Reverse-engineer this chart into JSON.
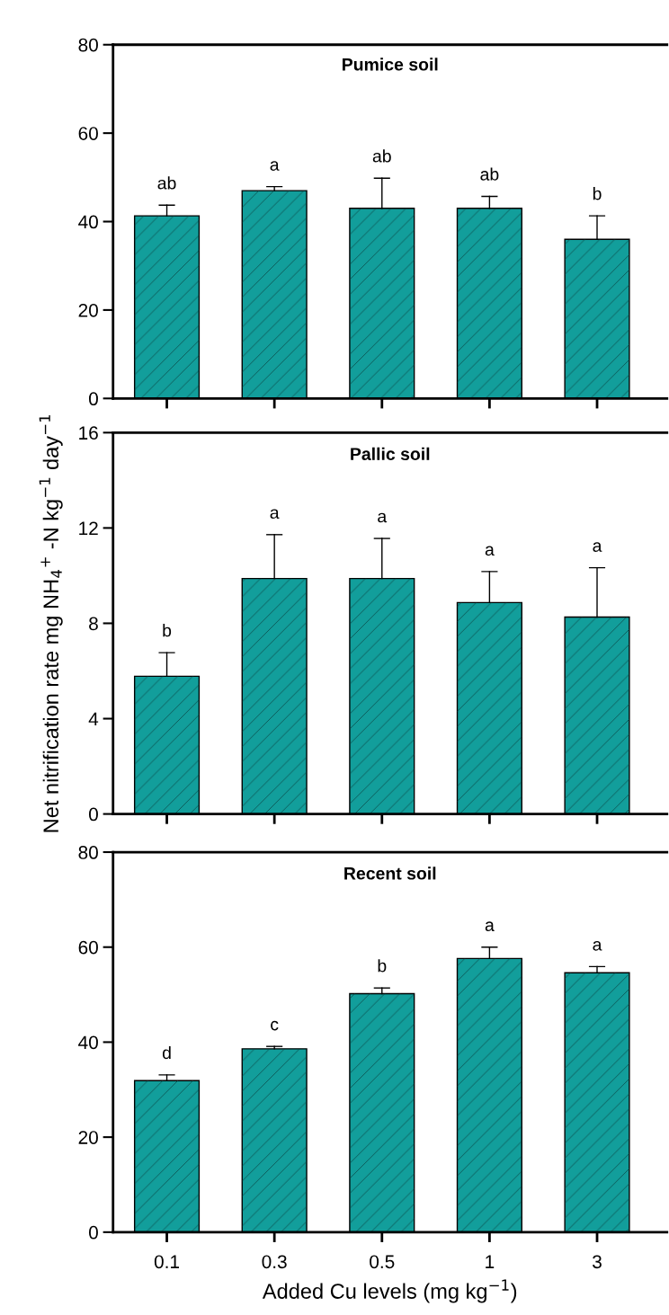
{
  "chart_data": [
    {
      "type": "bar",
      "title": "Pumice soil",
      "categories": [
        "0.1",
        "0.3",
        "0.5",
        "1",
        "3"
      ],
      "values": [
        41.3,
        47.0,
        43.0,
        43.0,
        36.0
      ],
      "errors": [
        [
          41.3,
          43.7
        ],
        [
          47.0,
          47.9
        ],
        [
          43.0,
          49.8
        ],
        [
          43.0,
          45.7
        ],
        [
          36.0,
          41.3
        ]
      ],
      "color": "#129e9b",
      "ylim": [
        0,
        80
      ],
      "yticks": [
        0,
        20,
        40,
        60,
        80
      ],
      "tick_labels": "y",
      "annotations": [
        {
          "text": "ab",
          "x": "0.1",
          "y": 43.7
        },
        {
          "text": "a",
          "x": "0.3",
          "y": 47.9
        },
        {
          "text": "ab",
          "x": "0.5",
          "y": 49.8
        },
        {
          "text": "ab",
          "x": "1",
          "y": 45.7
        },
        {
          "text": "b",
          "x": "3",
          "y": 41.3
        }
      ]
    },
    {
      "type": "bar",
      "title": "Pallic soil",
      "ylabel": "Net nitrification rate mg NH$_{4}$$^{+}$ -N kg$^{−1}$ day$^{−1}$",
      "categories": [
        "0.1",
        "0.3",
        "0.5",
        "1",
        "3"
      ],
      "values": [
        5.78,
        9.88,
        9.88,
        8.87,
        8.26
      ],
      "errors": [
        [
          5.78,
          6.77
        ],
        [
          9.88,
          11.72
        ],
        [
          9.88,
          11.56
        ],
        [
          8.87,
          10.17
        ],
        [
          8.26,
          10.33
        ]
      ],
      "color": "#129e9b",
      "ylim": [
        0,
        16
      ],
      "yticks": [
        0,
        4,
        8,
        12,
        16
      ],
      "tick_labels": "y",
      "annotations": [
        {
          "text": "b",
          "x": "0.1",
          "y": 6.77
        },
        {
          "text": "a",
          "x": "0.3",
          "y": 11.72
        },
        {
          "text": "a",
          "x": "0.5",
          "y": 11.56
        },
        {
          "text": "a",
          "x": "1",
          "y": 10.17
        },
        {
          "text": "a",
          "x": "3",
          "y": 10.33
        }
      ]
    },
    {
      "type": "bar",
      "title": "Recent soil",
      "xlabel": "Added Cu levels (mg kg$^{−1}$)",
      "categories": [
        "0.1",
        "0.3",
        "0.5",
        "1",
        "3"
      ],
      "values": [
        31.9,
        38.6,
        50.2,
        57.6,
        54.6
      ],
      "errors": [
        [
          31.9,
          33.1
        ],
        [
          38.6,
          39.1
        ],
        [
          50.2,
          51.4
        ],
        [
          57.6,
          60.0
        ],
        [
          54.6,
          55.9
        ]
      ],
      "color": "#129e9b",
      "ylim": [
        0,
        80
      ],
      "yticks": [
        0,
        20,
        40,
        60,
        80
      ],
      "annotations": [
        {
          "text": "d",
          "x": "0.1",
          "y": 33.1
        },
        {
          "text": "c",
          "x": "0.3",
          "y": 39.1
        },
        {
          "text": "b",
          "x": "0.5",
          "y": 51.4
        },
        {
          "text": "a",
          "x": "1",
          "y": 60.0
        },
        {
          "text": "a",
          "x": "3",
          "y": 55.9
        }
      ]
    }
  ]
}
